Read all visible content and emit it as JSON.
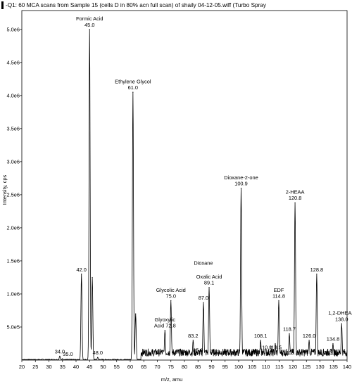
{
  "title": "-Q1: 60 MCA scans from Sample 15 (cells D in 80% acn full scan) of shaily 04-12-05.wiff (Turbo Spray",
  "chart_data": {
    "type": "line",
    "xlabel": "m/z, amu",
    "ylabel": "Intensity, cps",
    "xlim": [
      20,
      140
    ],
    "ylim": [
      0,
      5200000.0
    ],
    "x_ticks": [
      {
        "v": 20,
        "label": "20"
      },
      {
        "v": 25,
        "label": "25"
      },
      {
        "v": 30,
        "label": "30"
      },
      {
        "v": 35,
        "label": "35"
      },
      {
        "v": 40,
        "label": "40"
      },
      {
        "v": 45,
        "label": "45"
      },
      {
        "v": 50,
        "label": "50"
      },
      {
        "v": 55,
        "label": "55"
      },
      {
        "v": 60,
        "label": "60"
      },
      {
        "v": 65,
        "label": "65"
      },
      {
        "v": 70,
        "label": "70"
      },
      {
        "v": 75,
        "label": "75"
      },
      {
        "v": 80,
        "label": "80"
      },
      {
        "v": 85,
        "label": "85"
      },
      {
        "v": 90,
        "label": "90"
      },
      {
        "v": 95,
        "label": "95"
      },
      {
        "v": 100,
        "label": "100"
      },
      {
        "v": 105,
        "label": "105"
      },
      {
        "v": 110,
        "label": "110"
      },
      {
        "v": 115,
        "label": "115"
      },
      {
        "v": 120,
        "label": "120"
      },
      {
        "v": 125,
        "label": "125"
      },
      {
        "v": 130,
        "label": "130"
      },
      {
        "v": 135,
        "label": "135"
      },
      {
        "v": 140,
        "label": "140"
      }
    ],
    "y_ticks": [
      {
        "v": 500000,
        "label": "5.0e5"
      },
      {
        "v": 1000000,
        "label": "1.0e6"
      },
      {
        "v": 1500000,
        "label": "1.5e6"
      },
      {
        "v": 2000000,
        "label": "2.0e6"
      },
      {
        "v": 2500000,
        "label": "2.5e6"
      },
      {
        "v": 3000000,
        "label": "3.0e6"
      },
      {
        "v": 3500000,
        "label": "3.5e6"
      },
      {
        "v": 4000000,
        "label": "4.0e6"
      },
      {
        "v": 4500000,
        "label": "4.5e6"
      },
      {
        "v": 5000000,
        "label": "5.0e6"
      }
    ],
    "peaks": [
      {
        "x": 34.0,
        "y": 60000
      },
      {
        "x": 35.0,
        "y": 20000
      },
      {
        "x": 42.0,
        "y": 1300000
      },
      {
        "x": 45.0,
        "y": 5000000
      },
      {
        "x": 46.0,
        "y": 1250000
      },
      {
        "x": 48.0,
        "y": 40000
      },
      {
        "x": 61.0,
        "y": 4050000
      },
      {
        "x": 62.0,
        "y": 700000
      },
      {
        "x": 72.8,
        "y": 450000
      },
      {
        "x": 75.0,
        "y": 900000
      },
      {
        "x": 83.2,
        "y": 300000
      },
      {
        "x": 85.0,
        "y": 100000
      },
      {
        "x": 87.0,
        "y": 870000
      },
      {
        "x": 89.1,
        "y": 1100000
      },
      {
        "x": 91.2,
        "y": 100000
      },
      {
        "x": 96.0,
        "y": 120000
      },
      {
        "x": 100.9,
        "y": 2600000
      },
      {
        "x": 106.9,
        "y": 100000
      },
      {
        "x": 108.1,
        "y": 300000
      },
      {
        "x": 110.0,
        "y": 170000
      },
      {
        "x": 113.5,
        "y": 250000
      },
      {
        "x": 114.8,
        "y": 900000
      },
      {
        "x": 118.7,
        "y": 400000
      },
      {
        "x": 119.8,
        "y": 120000
      },
      {
        "x": 120.8,
        "y": 2380000
      },
      {
        "x": 126.0,
        "y": 300000
      },
      {
        "x": 128.8,
        "y": 1300000
      },
      {
        "x": 133.8,
        "y": 150000
      },
      {
        "x": 134.8,
        "y": 250000
      },
      {
        "x": 138.0,
        "y": 550000
      }
    ],
    "annotations": [
      {
        "x": 45.0,
        "y": 5000000,
        "lines": [
          "Formic Acid",
          "45.0"
        ]
      },
      {
        "x": 61.0,
        "y": 4050000,
        "lines": [
          "Ethylene Glycol",
          "61.0"
        ]
      },
      {
        "x": 42.0,
        "y": 1300000,
        "lines": [
          "42.0"
        ]
      },
      {
        "x": 100.9,
        "y": 2600000,
        "lines": [
          "Dioxane-2-one",
          "100.9"
        ]
      },
      {
        "x": 120.8,
        "y": 2380000,
        "lines": [
          "2-HEAA",
          "120.8"
        ]
      },
      {
        "x": 128.8,
        "y": 1300000,
        "lines": [
          "128.8"
        ]
      },
      {
        "x": 87.0,
        "y": 1400000,
        "lines": [
          "Dioxane"
        ]
      },
      {
        "x": 89.1,
        "y": 1100000,
        "lines": [
          "Oxalic Acid",
          "89.1"
        ]
      },
      {
        "x": 87.0,
        "y": 870000,
        "lines": [
          "87.0"
        ]
      },
      {
        "x": 75.0,
        "y": 900000,
        "lines": [
          "Glycolic Acid",
          "75.0"
        ]
      },
      {
        "x": 72.8,
        "y": 450000,
        "lines": [
          "Glyoxylic",
          "Acid 72.8"
        ]
      },
      {
        "x": 114.8,
        "y": 900000,
        "lines": [
          "EDF",
          "114.8"
        ]
      },
      {
        "x": 138.0,
        "y": 550000,
        "lines": [
          "1,2-DHEAA",
          "138.0"
        ]
      },
      {
        "x": 83.2,
        "y": 300000,
        "lines": [
          "83.2"
        ]
      },
      {
        "x": 118.7,
        "y": 400000,
        "lines": [
          "118.7"
        ]
      },
      {
        "x": 108.1,
        "y": 300000,
        "lines": [
          "108.1"
        ]
      },
      {
        "x": 126.0,
        "y": 300000,
        "lines": [
          "126.0"
        ]
      },
      {
        "x": 134.8,
        "y": 250000,
        "lines": [
          "134.8"
        ]
      },
      {
        "x": 113.5,
        "y": 120000,
        "lines": [
          "113.5"
        ]
      },
      {
        "x": 110.0,
        "y": 120000,
        "lines": [
          "110.0"
        ]
      },
      {
        "x": 85.0,
        "y": 80000,
        "lines": [
          "85.0"
        ]
      },
      {
        "x": 91.2,
        "y": 60000,
        "lines": [
          "91.2"
        ]
      },
      {
        "x": 96.0,
        "y": 40000,
        "lines": [
          "96.1"
        ]
      },
      {
        "x": 106.9,
        "y": 40000,
        "lines": [
          "106.9"
        ]
      },
      {
        "x": 119.8,
        "y": 40000,
        "lines": [
          "119.8"
        ]
      },
      {
        "x": 133.8,
        "y": 40000,
        "lines": [
          "133.8"
        ]
      },
      {
        "x": 34.0,
        "y": 60000,
        "lines": [
          "34.0"
        ]
      },
      {
        "x": 37.0,
        "y": 20000,
        "lines": [
          "35.0"
        ]
      },
      {
        "x": 48.0,
        "y": 40000,
        "lines": [
          "48.0"
        ]
      }
    ]
  }
}
